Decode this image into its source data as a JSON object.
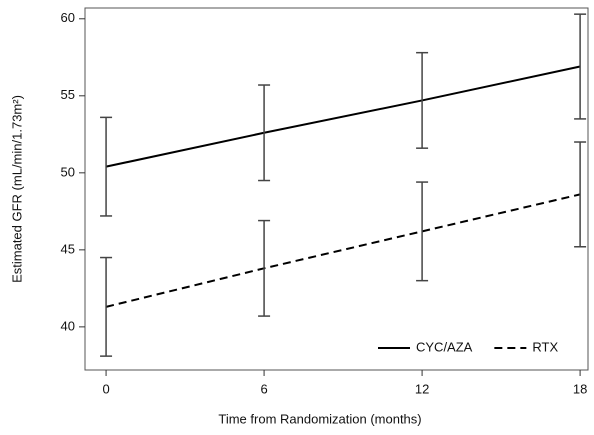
{
  "chart_data": {
    "type": "line",
    "x_label": "Time from Randomization (months)",
    "y_label": "Estimated GFR (mL/min/1.73m²)",
    "x": [
      0,
      6,
      12,
      18
    ],
    "xlim": [
      -0.8,
      18.3
    ],
    "xticks": [
      0,
      6,
      12,
      18
    ],
    "ylim": [
      37.2,
      60.7
    ],
    "yticks": [
      40,
      45,
      50,
      55,
      60
    ],
    "legend": "lower right",
    "series": [
      {
        "name": "CYC/AZA",
        "color": "#000000",
        "dash": "solid",
        "values": [
          50.4,
          52.6,
          54.7,
          56.9
        ],
        "errors": [
          3.2,
          3.1,
          3.1,
          3.4
        ]
      },
      {
        "name": "RTX",
        "color": "#000000",
        "dash": "dashed",
        "values": [
          41.3,
          43.8,
          46.2,
          48.6
        ],
        "errors": [
          3.2,
          3.1,
          3.2,
          3.4
        ]
      }
    ]
  }
}
